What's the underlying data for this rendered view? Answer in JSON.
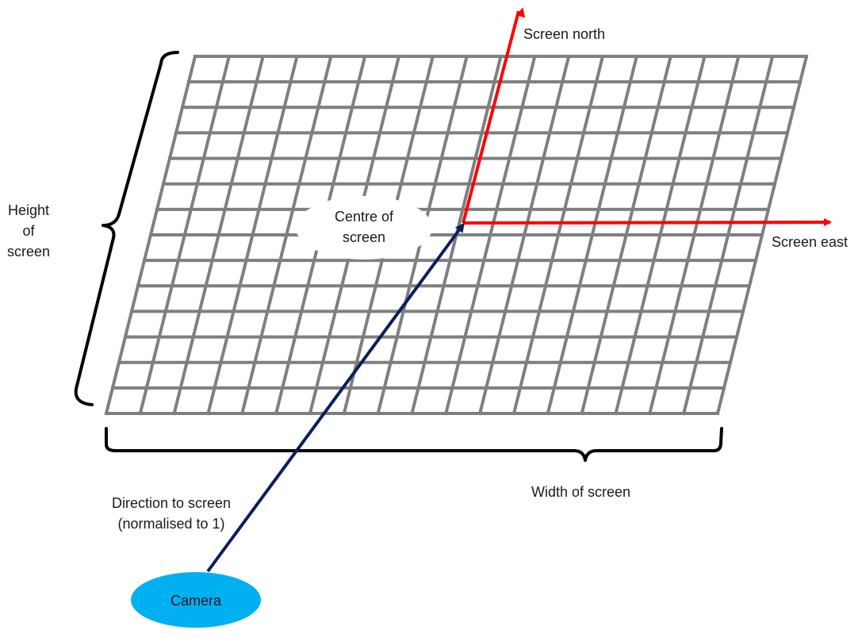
{
  "diagram": {
    "labels": {
      "screen_north": "Screen north",
      "screen_east": "Screen east",
      "height": "Height\nof\nscreen",
      "width": "Width of screen",
      "centre": "Centre of\nscreen",
      "direction": "Direction to screen\n(normalised to 1)",
      "camera": "Camera"
    },
    "grid": {
      "columns": 18,
      "rows": 14
    },
    "colors": {
      "grid": "#7f7f7f",
      "axes": "#ff0000",
      "direction_arrow": "#0b1f5c",
      "camera_fill": "#00b0f0",
      "bracket": "#000000",
      "centre_cloud": "#ffffff"
    }
  }
}
